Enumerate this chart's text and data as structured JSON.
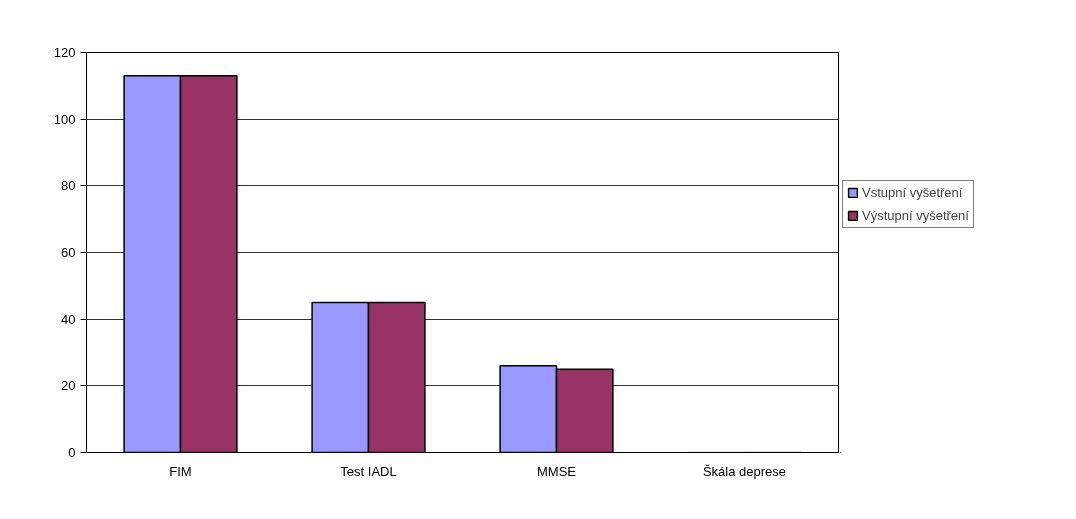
{
  "chart_data": {
    "type": "bar",
    "categories": [
      "FIM",
      "Test IADL",
      "MMSE",
      "Škála deprese"
    ],
    "series": [
      {
        "name": "Vstupní vyšetření",
        "color": "#9999ff",
        "values": [
          113,
          45,
          26,
          0
        ]
      },
      {
        "name": "Výstupní vyšetření",
        "color": "#993366",
        "values": [
          113,
          45,
          25,
          0
        ]
      }
    ],
    "ylim": [
      0,
      120
    ],
    "yticks": [
      0,
      20,
      40,
      60,
      80,
      100,
      120
    ],
    "grid": "y",
    "legend": "right"
  }
}
